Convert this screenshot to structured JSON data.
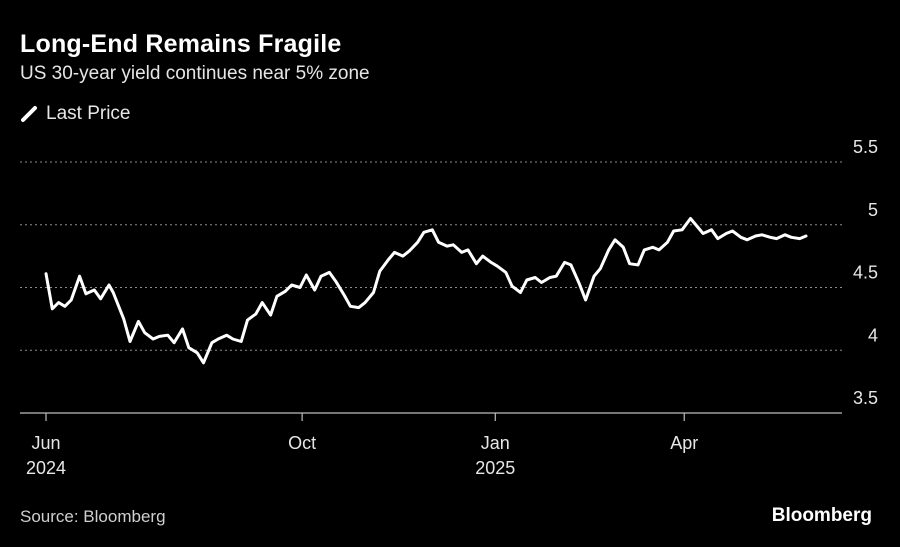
{
  "header": {
    "title": "Long-End Remains Fragile",
    "subtitle": "US 30-year yield continues near 5% zone"
  },
  "footer": {
    "source": "Source: Bloomberg",
    "brand": "Bloomberg"
  },
  "colors": {
    "background": "#000000",
    "line": "#ffffff",
    "grid": "#8c8c8c"
  },
  "chart_data": {
    "type": "line",
    "title": "Long-End Remains Fragile",
    "subtitle": "US 30-year yield continues near 5% zone",
    "legend": {
      "entries": [
        "Last Price"
      ],
      "placement": "top-left"
    },
    "y_axis": {
      "side": "right",
      "range": [
        3.5,
        5.5
      ],
      "ticks": [
        3.5,
        4,
        4.5,
        5,
        5.5
      ],
      "tick_labels": [
        "3.5",
        "4",
        "4.5",
        "5",
        "5.5"
      ],
      "grid": true
    },
    "x_axis": {
      "range": [
        "2024-05-31",
        "2025-06-01"
      ],
      "ticks": [
        {
          "date": "2024-06-01",
          "label": "Jun",
          "sublabel": "2024"
        },
        {
          "date": "2024-10-01",
          "label": "Oct",
          "sublabel": ""
        },
        {
          "date": "2025-01-01",
          "label": "Jan",
          "sublabel": "2025"
        },
        {
          "date": "2025-04-01",
          "label": "Apr",
          "sublabel": ""
        }
      ]
    },
    "series": [
      {
        "name": "Last Price",
        "x": [
          "2024-06-01",
          "2024-06-04",
          "2024-06-07",
          "2024-06-10",
          "2024-06-13",
          "2024-06-17",
          "2024-06-20",
          "2024-06-24",
          "2024-06-27",
          "2024-07-01",
          "2024-07-03",
          "2024-07-08",
          "2024-07-11",
          "2024-07-15",
          "2024-07-18",
          "2024-07-22",
          "2024-07-25",
          "2024-07-29",
          "2024-08-01",
          "2024-08-05",
          "2024-08-08",
          "2024-08-12",
          "2024-08-15",
          "2024-08-19",
          "2024-08-22",
          "2024-08-26",
          "2024-08-29",
          "2024-09-02",
          "2024-09-05",
          "2024-09-09",
          "2024-09-12",
          "2024-09-16",
          "2024-09-19",
          "2024-09-23",
          "2024-09-26",
          "2024-09-30",
          "2024-10-03",
          "2024-10-07",
          "2024-10-10",
          "2024-10-14",
          "2024-10-17",
          "2024-10-21",
          "2024-10-24",
          "2024-10-28",
          "2024-10-31",
          "2024-11-04",
          "2024-11-07",
          "2024-11-11",
          "2024-11-14",
          "2024-11-18",
          "2024-11-21",
          "2024-11-25",
          "2024-11-28",
          "2024-12-02",
          "2024-12-05",
          "2024-12-09",
          "2024-12-12",
          "2024-12-16",
          "2024-12-19",
          "2024-12-23",
          "2024-12-26",
          "2024-12-30",
          "2025-01-02",
          "2025-01-06",
          "2025-01-09",
          "2025-01-13",
          "2025-01-16",
          "2025-01-20",
          "2025-01-23",
          "2025-01-27",
          "2025-01-30",
          "2025-02-03",
          "2025-02-06",
          "2025-02-10",
          "2025-02-13",
          "2025-02-17",
          "2025-02-20",
          "2025-02-24",
          "2025-02-27",
          "2025-03-03",
          "2025-03-06",
          "2025-03-10",
          "2025-03-13",
          "2025-03-17",
          "2025-03-20",
          "2025-03-24",
          "2025-03-27",
          "2025-03-31",
          "2025-04-04",
          "2025-04-07",
          "2025-04-10",
          "2025-04-14",
          "2025-04-17",
          "2025-04-21",
          "2025-04-24",
          "2025-04-28",
          "2025-05-01",
          "2025-05-05",
          "2025-05-08",
          "2025-05-12",
          "2025-05-15",
          "2025-05-19",
          "2025-05-22",
          "2025-05-26",
          "2025-05-29"
        ],
        "y": [
          4.61,
          4.33,
          4.38,
          4.35,
          4.4,
          4.59,
          4.45,
          4.48,
          4.41,
          4.52,
          4.46,
          4.25,
          4.07,
          4.23,
          4.14,
          4.09,
          4.11,
          4.12,
          4.06,
          4.17,
          4.02,
          3.98,
          3.9,
          4.06,
          4.09,
          4.12,
          4.09,
          4.07,
          4.24,
          4.29,
          4.38,
          4.28,
          4.43,
          4.47,
          4.52,
          4.5,
          4.6,
          4.48,
          4.59,
          4.62,
          4.55,
          4.44,
          4.35,
          4.34,
          4.38,
          4.46,
          4.63,
          4.72,
          4.78,
          4.75,
          4.79,
          4.86,
          4.94,
          4.96,
          4.86,
          4.83,
          4.84,
          4.78,
          4.8,
          4.69,
          4.75,
          4.7,
          4.67,
          4.62,
          4.51,
          4.46,
          4.56,
          4.58,
          4.54,
          4.58,
          4.59,
          4.7,
          4.68,
          4.53,
          4.4,
          4.59,
          4.65,
          4.8,
          4.88,
          4.82,
          4.69,
          4.68,
          4.8,
          4.82,
          4.8,
          4.86,
          4.95,
          4.96,
          5.05,
          4.99,
          4.93,
          4.96,
          4.89,
          4.93,
          4.95,
          4.9,
          4.88,
          4.91,
          4.92,
          4.9,
          4.89,
          4.92,
          4.9,
          4.89,
          4.91
        ]
      }
    ]
  }
}
